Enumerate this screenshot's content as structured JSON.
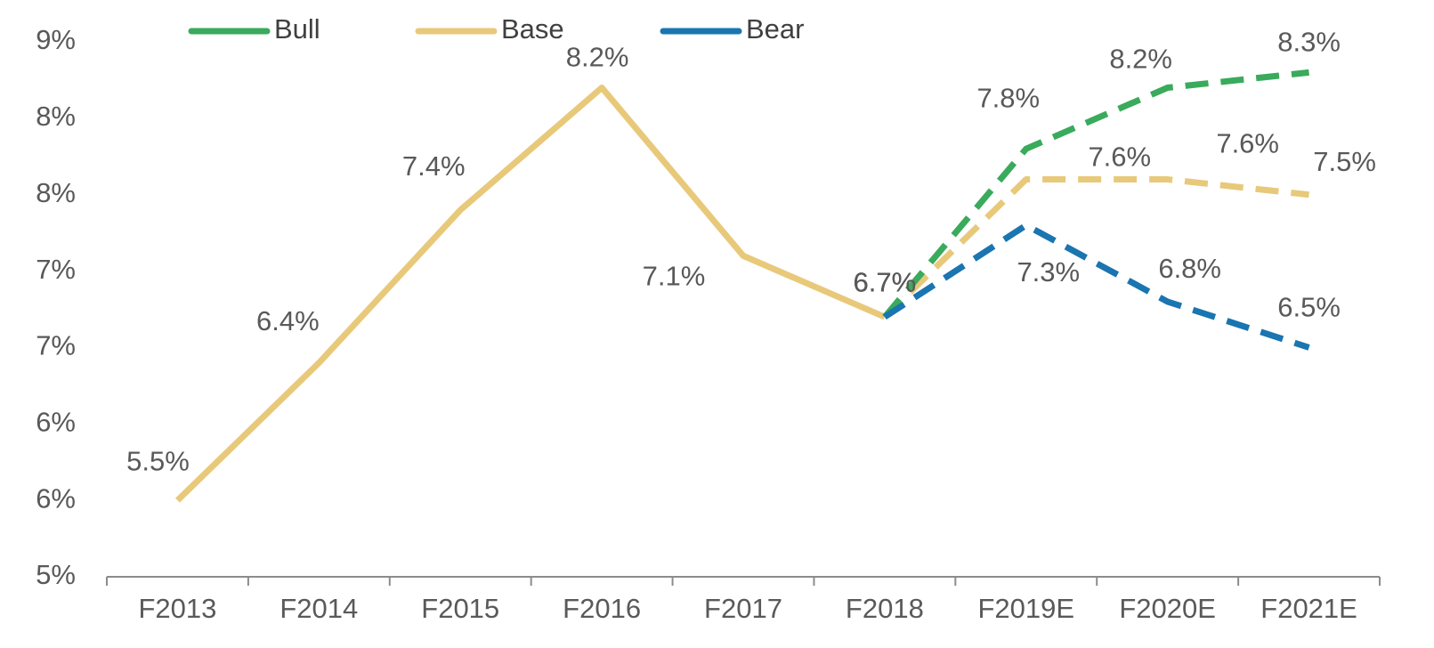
{
  "chart_data": {
    "type": "line",
    "categories": [
      "F2013",
      "F2014",
      "F2015",
      "F2016",
      "F2017",
      "F2018",
      "F2019E",
      "F2020E",
      "F2021E"
    ],
    "series": [
      {
        "name": "Bull",
        "color": "#3aaa5c",
        "dashed": true,
        "values": [
          null,
          null,
          null,
          null,
          null,
          6.7,
          7.8,
          8.2,
          8.3
        ],
        "value_labels": [
          null,
          null,
          null,
          null,
          null,
          "6.7%",
          "7.8%",
          "8.2%",
          "8.3%"
        ]
      },
      {
        "name": "Base",
        "color": "#e8c97a",
        "dash_from": "F2018",
        "values": [
          5.5,
          6.4,
          7.4,
          8.2,
          7.1,
          6.7,
          7.6,
          7.6,
          7.5
        ],
        "value_labels": [
          "5.5%",
          "6.4%",
          "7.4%",
          "8.2%",
          "7.1%",
          "6.7%",
          "7.6%",
          "7.6%",
          "7.5%"
        ]
      },
      {
        "name": "Bear",
        "color": "#1a75b0",
        "dashed": true,
        "values": [
          null,
          null,
          null,
          null,
          null,
          6.7,
          7.3,
          6.8,
          6.5
        ],
        "value_labels": [
          null,
          null,
          null,
          null,
          null,
          "6.7%",
          "7.3%",
          "6.8%",
          "6.5%"
        ]
      }
    ],
    "ylim": [
      5,
      8.5
    ],
    "yticks": [
      {
        "value": 5,
        "label": "5%"
      },
      {
        "value": 5.5,
        "label": "6%"
      },
      {
        "value": 6,
        "label": "6%"
      },
      {
        "value": 6.5,
        "label": "7%"
      },
      {
        "value": 7,
        "label": "7%"
      },
      {
        "value": 7.5,
        "label": "8%"
      },
      {
        "value": 8,
        "label": "8%"
      },
      {
        "value": 8.5,
        "label": "9%"
      }
    ],
    "legend": "top",
    "grid": false
  }
}
